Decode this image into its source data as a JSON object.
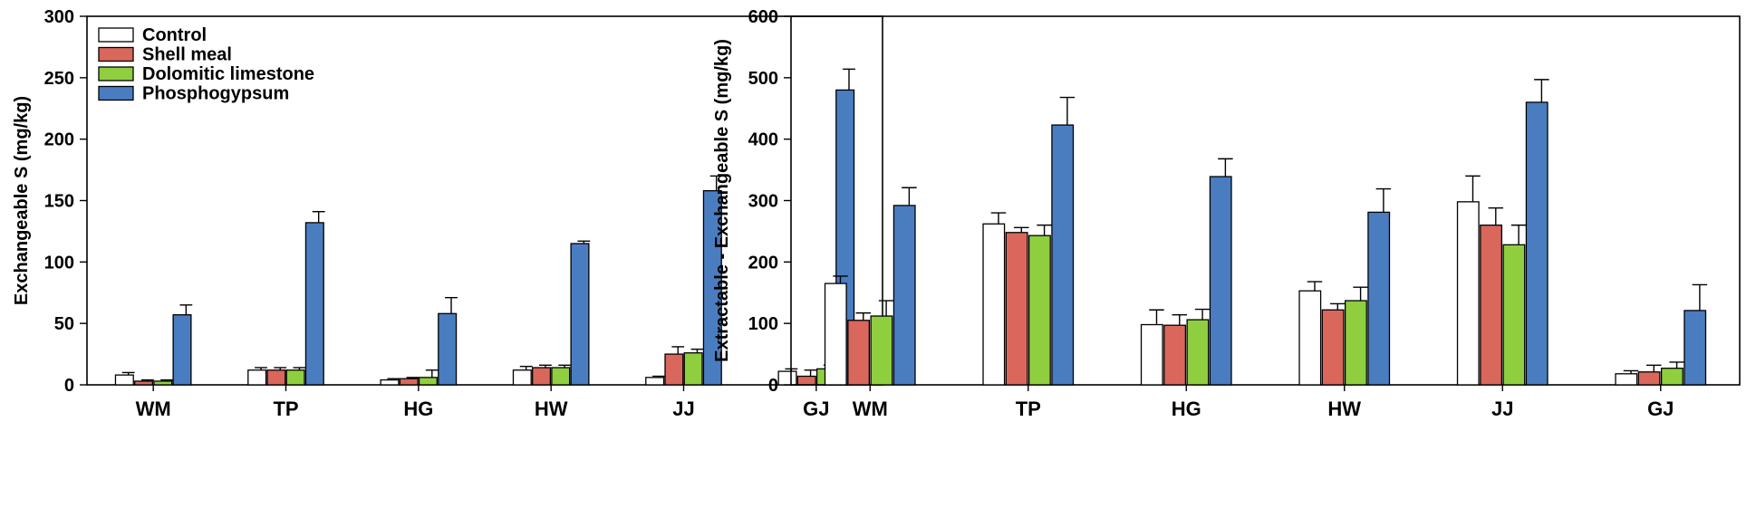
{
  "chart_data": [
    {
      "type": "bar",
      "title": "",
      "xlabel": "",
      "ylabel": "Exchangeable S (mg/kg)",
      "ylim": [
        0,
        300
      ],
      "yticks": [
        0,
        50,
        100,
        150,
        200,
        250,
        300
      ],
      "categories": [
        "WM",
        "TP",
        "HG",
        "HW",
        "JJ",
        "GJ"
      ],
      "legend": true,
      "legend_position": "top-left",
      "series": [
        {
          "name": "Control",
          "color": "#ffffff",
          "values": [
            8,
            12,
            4,
            12,
            6,
            11
          ],
          "errors": [
            2,
            2,
            1,
            3,
            1,
            2
          ]
        },
        {
          "name": "Shell meal",
          "color": "#d9675c",
          "values": [
            3,
            12,
            5,
            14,
            25,
            7
          ],
          "errors": [
            1,
            2,
            1,
            2,
            6,
            5
          ]
        },
        {
          "name": "Dolomitic limestone",
          "color": "#8fcf3f",
          "values": [
            3,
            12,
            6,
            14,
            26,
            13
          ],
          "errors": [
            1,
            2,
            6,
            2,
            3,
            3
          ]
        },
        {
          "name": "Phosphogypsum",
          "color": "#4a7dc0",
          "values": [
            57,
            132,
            58,
            115,
            158,
            240
          ],
          "errors": [
            8,
            9,
            13,
            2,
            12,
            17
          ]
        }
      ]
    },
    {
      "type": "bar",
      "title": "",
      "xlabel": "",
      "ylabel": "Extractable - Exchangeable S (mg/kg)",
      "ylim": [
        0,
        600
      ],
      "yticks": [
        0,
        100,
        200,
        300,
        400,
        500,
        600
      ],
      "categories": [
        "WM",
        "TP",
        "HG",
        "HW",
        "JJ",
        "GJ"
      ],
      "legend": false,
      "series": [
        {
          "name": "Control",
          "color": "#ffffff",
          "values": [
            165,
            262,
            98,
            153,
            298,
            18
          ],
          "errors": [
            12,
            18,
            24,
            15,
            42,
            5
          ]
        },
        {
          "name": "Shell meal",
          "color": "#d9675c",
          "values": [
            105,
            248,
            97,
            122,
            260,
            21
          ],
          "errors": [
            12,
            8,
            17,
            10,
            28,
            11
          ]
        },
        {
          "name": "Dolomitic limestone",
          "color": "#8fcf3f",
          "values": [
            112,
            243,
            106,
            137,
            228,
            27
          ],
          "errors": [
            25,
            17,
            17,
            22,
            32,
            10
          ]
        },
        {
          "name": "Phosphogypsum",
          "color": "#4a7dc0",
          "values": [
            292,
            423,
            339,
            281,
            460,
            121
          ],
          "errors": [
            29,
            45,
            29,
            38,
            37,
            42
          ]
        }
      ]
    }
  ]
}
